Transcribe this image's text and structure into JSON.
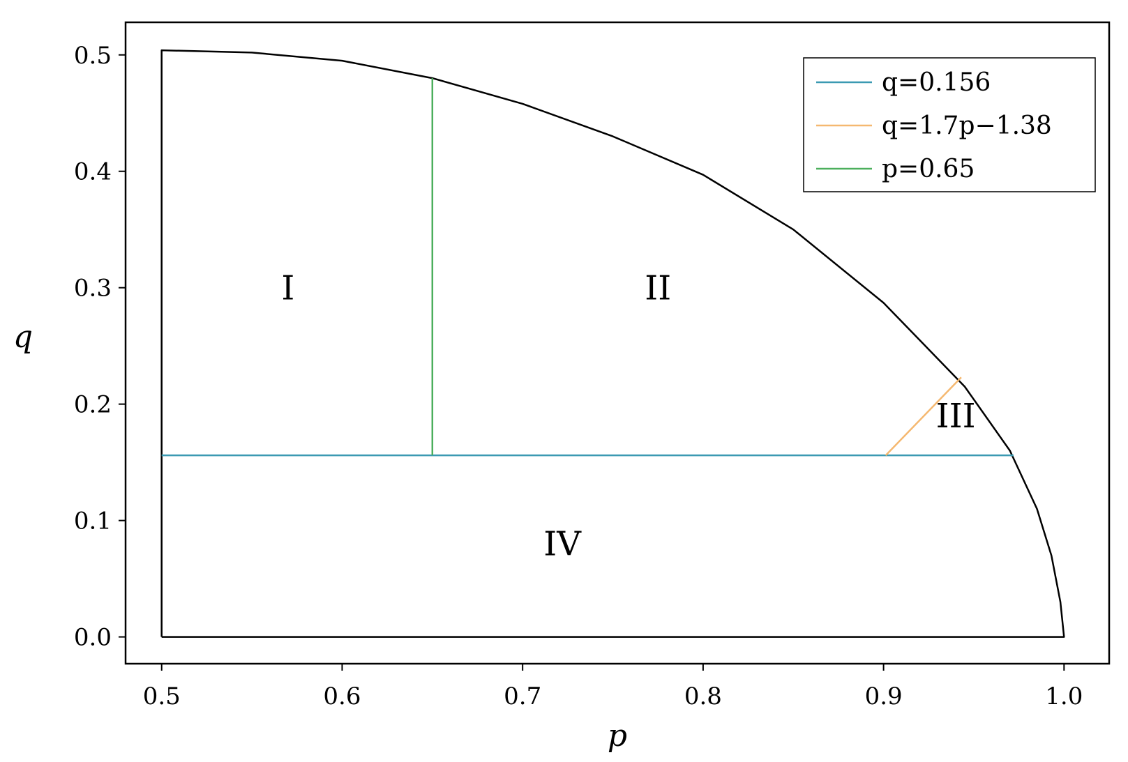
{
  "chart_data": {
    "type": "line",
    "title": "",
    "xlabel": "p",
    "ylabel": "q",
    "xlim": [
      0.48,
      1.025
    ],
    "ylim": [
      -0.023,
      0.528
    ],
    "xticks": [
      0.5,
      0.6,
      0.7,
      0.8,
      0.9,
      1.0
    ],
    "xtick_labels": [
      "0.5",
      "0.6",
      "0.7",
      "0.8",
      "0.9",
      "1.0"
    ],
    "yticks": [
      0.0,
      0.1,
      0.2,
      0.3,
      0.4,
      0.5
    ],
    "ytick_labels": [
      "0.0",
      "0.1",
      "0.2",
      "0.3",
      "0.4",
      "0.5"
    ],
    "grid": false,
    "legend_position": "top-right",
    "boundary": {
      "color": "#000000",
      "points": [
        [
          0.5,
          0.0
        ],
        [
          0.5,
          0.504
        ],
        [
          0.55,
          0.502
        ],
        [
          0.6,
          0.495
        ],
        [
          0.65,
          0.48
        ],
        [
          0.7,
          0.458
        ],
        [
          0.75,
          0.43
        ],
        [
          0.8,
          0.397
        ],
        [
          0.85,
          0.35
        ],
        [
          0.9,
          0.287
        ],
        [
          0.92,
          0.255
        ],
        [
          0.945,
          0.215
        ],
        [
          0.97,
          0.16
        ],
        [
          0.985,
          0.11
        ],
        [
          0.993,
          0.07
        ],
        [
          0.998,
          0.03
        ],
        [
          1.0,
          0.0
        ],
        [
          0.5,
          0.0
        ]
      ]
    },
    "series": [
      {
        "name": "q=0.156",
        "color": "#3b9ab2",
        "points": [
          [
            0.5,
            0.156
          ],
          [
            0.972,
            0.156
          ]
        ]
      },
      {
        "name": "q=1.7p−1.38",
        "color": "#f5b870",
        "points": [
          [
            0.9012,
            0.156
          ],
          [
            0.943,
            0.223
          ]
        ]
      },
      {
        "name": "p=0.65",
        "color": "#4caf5c",
        "points": [
          [
            0.65,
            0.156
          ],
          [
            0.65,
            0.48
          ]
        ]
      }
    ],
    "legend": [
      {
        "var": "q",
        "rest1": "=1.7",
        "var2": "",
        "rest2": "",
        "text": "q=0.156"
      },
      {
        "text": "q=1.7p−1.38"
      },
      {
        "text": "p=0.65"
      }
    ],
    "regions": [
      {
        "label": "I",
        "x": 0.57,
        "y": 0.29
      },
      {
        "label": "II",
        "x": 0.775,
        "y": 0.29
      },
      {
        "label": "III",
        "x": 0.94,
        "y": 0.18
      },
      {
        "label": "IV",
        "x": 0.722,
        "y": 0.07
      }
    ]
  }
}
